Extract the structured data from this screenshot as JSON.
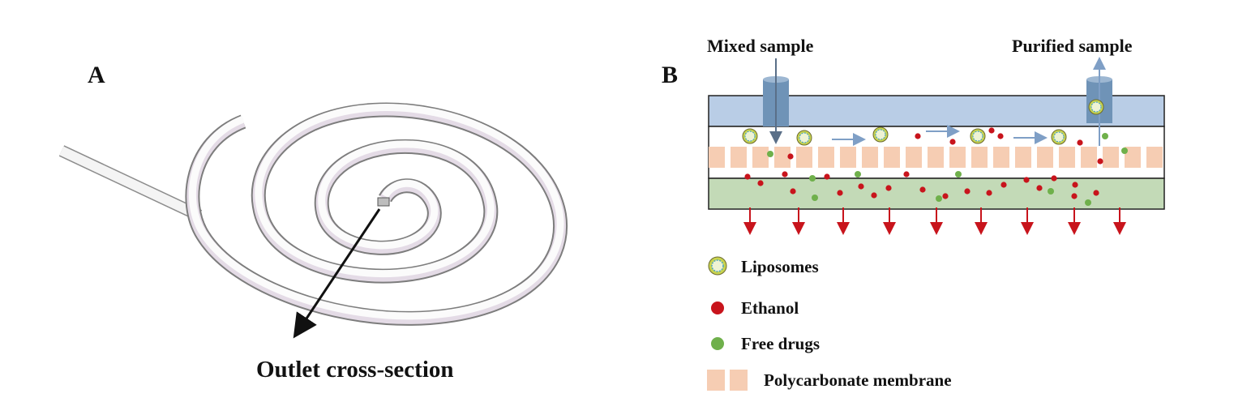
{
  "panel_a": {
    "label": "A",
    "outlet_label": "Outlet cross-section"
  },
  "panel_b": {
    "label": "B",
    "mixed_sample_label": "Mixed sample",
    "purified_sample_label": "Purified sample",
    "legend": [
      {
        "label": "Liposomes",
        "icon": "liposome-icon"
      },
      {
        "label": "Ethanol",
        "icon": "ethanol-dot-icon"
      },
      {
        "label": "Free drugs",
        "icon": "free-drug-dot-icon"
      },
      {
        "label": "Polycarbonate membrane",
        "icon": "membrane-swatch-icon"
      }
    ]
  },
  "colors": {
    "top_channel": "#b9cde6",
    "bottom_channel": "#c3dab7",
    "membrane": "#f6cdb3",
    "ethanol": "#c8141c",
    "free_drug": "#6fb04b",
    "liposome_ring": "#c9d34f",
    "flow_arrow": "#7f9fc6",
    "outflow_arrow": "#c8141c",
    "port": "#6f93b7"
  }
}
